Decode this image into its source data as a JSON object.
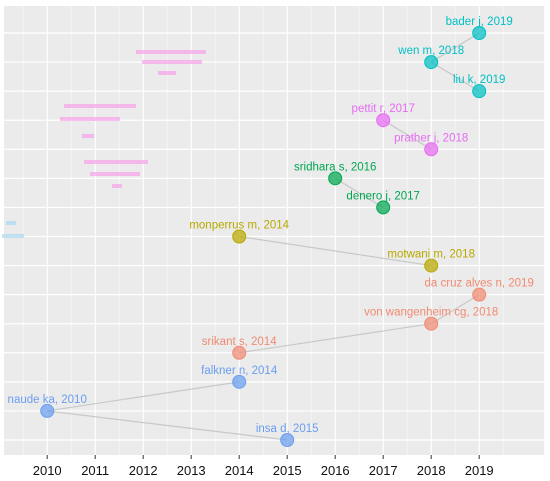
{
  "chart_data": {
    "type": "scatter",
    "title": "",
    "xlabel": "",
    "ylabel": "",
    "xlim": [
      2009.1,
      2020.35
    ],
    "x_ticks": [
      "2010",
      "2011",
      "2012",
      "2013",
      "2014",
      "2015",
      "2016",
      "2017",
      "2018",
      "2019"
    ],
    "grid": true,
    "legend": "none",
    "colors": {
      "panel_bg": "#ebebeb",
      "grid": "#ffffff",
      "connector": "#c8c8c8",
      "cyan": "#00bfc4",
      "magenta": "#e76bf3",
      "green": "#00a651",
      "olive": "#b8a800",
      "salmon": "#f08a72",
      "blue": "#6a9ef0"
    },
    "points": [
      {
        "label": "bader j, 2019",
        "x": 2019,
        "y": 15,
        "color": "cyan"
      },
      {
        "label": "wen m, 2018",
        "x": 2018,
        "y": 14,
        "color": "cyan"
      },
      {
        "label": "liu k, 2019",
        "x": 2019,
        "y": 13,
        "color": "cyan"
      },
      {
        "label": "pettit r, 2017",
        "x": 2017,
        "y": 12,
        "color": "magenta"
      },
      {
        "label": "prather j, 2018",
        "x": 2018,
        "y": 11,
        "color": "magenta"
      },
      {
        "label": "sridhara s, 2016",
        "x": 2016,
        "y": 10,
        "color": "green"
      },
      {
        "label": "denero j, 2017",
        "x": 2017,
        "y": 9,
        "color": "green"
      },
      {
        "label": "monperrus m, 2014",
        "x": 2014,
        "y": 8,
        "color": "olive"
      },
      {
        "label": "motwani m, 2018",
        "x": 2018,
        "y": 7,
        "color": "olive"
      },
      {
        "label": "da cruz alves n, 2019",
        "x": 2019,
        "y": 6,
        "color": "salmon"
      },
      {
        "label": "von wangenheim cg, 2018",
        "x": 2018,
        "y": 5,
        "color": "salmon"
      },
      {
        "label": "srikant s, 2014",
        "x": 2014,
        "y": 4,
        "color": "salmon"
      },
      {
        "label": "falkner n, 2014",
        "x": 2014,
        "y": 3,
        "color": "blue"
      },
      {
        "label": "naude ka, 2010",
        "x": 2010,
        "y": 2,
        "color": "blue"
      },
      {
        "label": "insa d, 2015",
        "x": 2015,
        "y": 1,
        "color": "blue"
      }
    ],
    "connections": [
      [
        1,
        0
      ],
      [
        1,
        2
      ],
      [
        3,
        4
      ],
      [
        5,
        6
      ],
      [
        7,
        8
      ],
      [
        11,
        10
      ],
      [
        10,
        9
      ],
      [
        13,
        12
      ],
      [
        13,
        14
      ]
    ]
  }
}
